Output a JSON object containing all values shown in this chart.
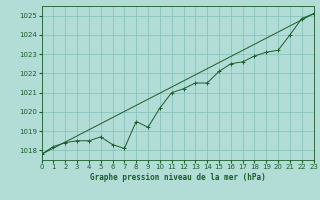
{
  "title": "Graphe pression niveau de la mer (hPa)",
  "background_color": "#b2ddd6",
  "grid_color": "#80bfb8",
  "line_color": "#1a5c2a",
  "xlim": [
    0,
    23
  ],
  "ylim": [
    1017.5,
    1025.5
  ],
  "yticks": [
    1018,
    1019,
    1020,
    1021,
    1022,
    1023,
    1024,
    1025
  ],
  "xticks": [
    0,
    1,
    2,
    3,
    4,
    5,
    6,
    7,
    8,
    9,
    10,
    11,
    12,
    13,
    14,
    15,
    16,
    17,
    18,
    19,
    20,
    21,
    22,
    23
  ],
  "series1_x": [
    0,
    1,
    2,
    3,
    4,
    5,
    6,
    7,
    8,
    9,
    10,
    11,
    12,
    13,
    14,
    15,
    16,
    17,
    18,
    19,
    20,
    21,
    22,
    23
  ],
  "series1_y": [
    1017.8,
    1018.2,
    1018.4,
    1018.5,
    1018.5,
    1018.7,
    1018.3,
    1018.1,
    1019.5,
    1019.2,
    1020.2,
    1021.0,
    1021.2,
    1021.5,
    1021.5,
    1022.1,
    1022.5,
    1022.6,
    1022.9,
    1023.1,
    1023.2,
    1024.0,
    1024.85,
    1025.1
  ],
  "series2_x": [
    0,
    23
  ],
  "series2_y": [
    1017.8,
    1025.1
  ],
  "xlabel_fontsize": 5.5,
  "tick_fontsize": 5,
  "linewidth": 0.7,
  "marker_size": 3
}
